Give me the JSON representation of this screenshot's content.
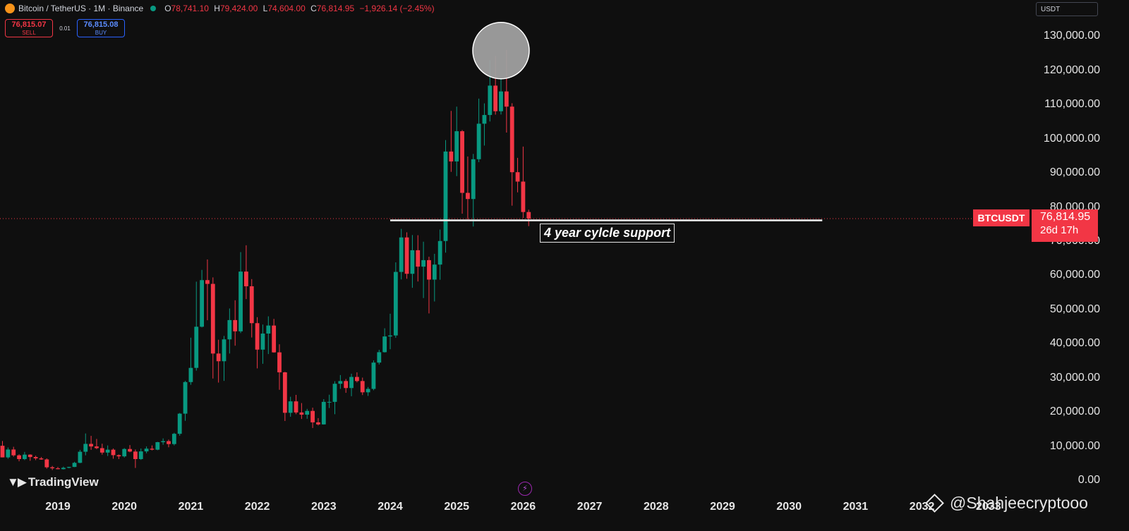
{
  "header": {
    "symbol": "Bitcoin / TetherUS · 1M · Binance",
    "ohlc": {
      "o_label": "O",
      "o_val": "78,741.10",
      "h_label": "H",
      "h_val": "79,424.00",
      "l_label": "L",
      "l_val": "74,604.00",
      "c_label": "C",
      "c_val": "76,814.95",
      "change": "−1,926.14 (−2.45%)"
    },
    "sell_price": "76,815.07",
    "sell_label": "SELL",
    "spread": "0.01",
    "buy_price": "76,815.08",
    "buy_label": "BUY",
    "currency": "USDT"
  },
  "price_tag": {
    "symbol": "BTCUSDT",
    "price": "76,814.95",
    "countdown": "26d 17h"
  },
  "annotation": "4 year cylcle support",
  "logo": "TradingView",
  "watermark": "@Shahjeecryptooo",
  "colors": {
    "up": "#089981",
    "down": "#f23645",
    "background": "#0f0f0f"
  },
  "chart_data": {
    "type": "candlestick",
    "series_name": "Bitcoin / TetherUS",
    "interval": "1M",
    "y_ticks": [
      0,
      10000,
      20000,
      30000,
      40000,
      50000,
      60000,
      70000,
      80000,
      90000,
      100000,
      110000,
      120000,
      130000
    ],
    "y_tick_labels": [
      "0.00",
      "10,000.00",
      "20,000.00",
      "30,000.00",
      "40,000.00",
      "50,000.00",
      "60,000.00",
      "70,000.00",
      "80,000.00",
      "90,000.00",
      "100,000.00",
      "110,000.00",
      "120,000.00",
      "130,000.00"
    ],
    "x_tick_labels": [
      "2019",
      "2020",
      "2021",
      "2022",
      "2023",
      "2024",
      "2025",
      "2026",
      "2027",
      "2028",
      "2029",
      "2030",
      "2031",
      "2032",
      "2033"
    ],
    "x_tick_dates": [
      "2019-01",
      "2020-01",
      "2021-01",
      "2022-01",
      "2023-01",
      "2024-01",
      "2025-01",
      "2026-01",
      "2027-01",
      "2028-01",
      "2029-01",
      "2030-01",
      "2031-01",
      "2032-01",
      "2033-01"
    ],
    "grid": false,
    "support_level": 76300,
    "support_from": "2024-01",
    "support_to": "2030-07",
    "highlight": {
      "date": "2025-09",
      "price": 126000
    },
    "candles": [
      {
        "date": "2018-02",
        "o": 10200,
        "h": 11800,
        "l": 6000,
        "c": 10300
      },
      {
        "date": "2018-03",
        "o": 10300,
        "h": 11700,
        "l": 6900,
        "c": 6900
      },
      {
        "date": "2018-04",
        "o": 6900,
        "h": 9800,
        "l": 6500,
        "c": 9200
      },
      {
        "date": "2018-05",
        "o": 9200,
        "h": 10000,
        "l": 7100,
        "c": 7500
      },
      {
        "date": "2018-06",
        "o": 7500,
        "h": 7800,
        "l": 5750,
        "c": 6400
      },
      {
        "date": "2018-07",
        "o": 6400,
        "h": 8500,
        "l": 6100,
        "c": 7700
      },
      {
        "date": "2018-08",
        "o": 7700,
        "h": 7800,
        "l": 5900,
        "c": 7000
      },
      {
        "date": "2018-09",
        "o": 7000,
        "h": 7400,
        "l": 6100,
        "c": 6600
      },
      {
        "date": "2018-10",
        "o": 6600,
        "h": 7000,
        "l": 6200,
        "c": 6300
      },
      {
        "date": "2018-11",
        "o": 6300,
        "h": 6600,
        "l": 3600,
        "c": 4000
      },
      {
        "date": "2018-12",
        "o": 4000,
        "h": 4400,
        "l": 3200,
        "c": 3700
      },
      {
        "date": "2019-01",
        "o": 3700,
        "h": 4100,
        "l": 3400,
        "c": 3450
      },
      {
        "date": "2019-02",
        "o": 3450,
        "h": 4200,
        "l": 3350,
        "c": 3850
      },
      {
        "date": "2019-03",
        "o": 3850,
        "h": 4150,
        "l": 3700,
        "c": 4100
      },
      {
        "date": "2019-04",
        "o": 4100,
        "h": 5600,
        "l": 4050,
        "c": 5300
      },
      {
        "date": "2019-05",
        "o": 5300,
        "h": 9100,
        "l": 5200,
        "c": 8550
      },
      {
        "date": "2019-06",
        "o": 8550,
        "h": 13900,
        "l": 7500,
        "c": 10850
      },
      {
        "date": "2019-07",
        "o": 10850,
        "h": 13200,
        "l": 9100,
        "c": 10100
      },
      {
        "date": "2019-08",
        "o": 10100,
        "h": 12300,
        "l": 9300,
        "c": 9600
      },
      {
        "date": "2019-09",
        "o": 9600,
        "h": 10900,
        "l": 7700,
        "c": 8300
      },
      {
        "date": "2019-10",
        "o": 8300,
        "h": 10400,
        "l": 7300,
        "c": 9150
      },
      {
        "date": "2019-11",
        "o": 9150,
        "h": 9500,
        "l": 6500,
        "c": 7550
      },
      {
        "date": "2019-12",
        "o": 7550,
        "h": 7750,
        "l": 6400,
        "c": 7200
      },
      {
        "date": "2020-01",
        "o": 7200,
        "h": 9600,
        "l": 6850,
        "c": 9350
      },
      {
        "date": "2020-02",
        "o": 9350,
        "h": 10500,
        "l": 8400,
        "c": 8600
      },
      {
        "date": "2020-03",
        "o": 8600,
        "h": 9200,
        "l": 3800,
        "c": 6400
      },
      {
        "date": "2020-04",
        "o": 6400,
        "h": 9500,
        "l": 6150,
        "c": 8650
      },
      {
        "date": "2020-05",
        "o": 8650,
        "h": 10100,
        "l": 8100,
        "c": 9450
      },
      {
        "date": "2020-06",
        "o": 9450,
        "h": 10400,
        "l": 8950,
        "c": 9150
      },
      {
        "date": "2020-07",
        "o": 9150,
        "h": 11450,
        "l": 9000,
        "c": 11350
      },
      {
        "date": "2020-08",
        "o": 11350,
        "h": 12450,
        "l": 10600,
        "c": 11650
      },
      {
        "date": "2020-09",
        "o": 11650,
        "h": 12100,
        "l": 9850,
        "c": 10800
      },
      {
        "date": "2020-10",
        "o": 10800,
        "h": 14100,
        "l": 10400,
        "c": 13800
      },
      {
        "date": "2020-11",
        "o": 13800,
        "h": 19900,
        "l": 13250,
        "c": 19700
      },
      {
        "date": "2020-12",
        "o": 19700,
        "h": 29300,
        "l": 17600,
        "c": 28950
      },
      {
        "date": "2021-01",
        "o": 28950,
        "h": 41950,
        "l": 28150,
        "c": 33100
      },
      {
        "date": "2021-02",
        "o": 33100,
        "h": 58350,
        "l": 32300,
        "c": 45150
      },
      {
        "date": "2021-03",
        "o": 45150,
        "h": 61800,
        "l": 44950,
        "c": 58800
      },
      {
        "date": "2021-04",
        "o": 58800,
        "h": 64850,
        "l": 47050,
        "c": 57700
      },
      {
        "date": "2021-05",
        "o": 57700,
        "h": 59600,
        "l": 30000,
        "c": 37300
      },
      {
        "date": "2021-06",
        "o": 37300,
        "h": 41350,
        "l": 28800,
        "c": 35050
      },
      {
        "date": "2021-07",
        "o": 35050,
        "h": 42450,
        "l": 29300,
        "c": 41450
      },
      {
        "date": "2021-08",
        "o": 41450,
        "h": 50500,
        "l": 37300,
        "c": 47100
      },
      {
        "date": "2021-09",
        "o": 47100,
        "h": 52900,
        "l": 39600,
        "c": 43800
      },
      {
        "date": "2021-10",
        "o": 43800,
        "h": 67000,
        "l": 43300,
        "c": 61300
      },
      {
        "date": "2021-11",
        "o": 61300,
        "h": 69000,
        "l": 53250,
        "c": 57000
      },
      {
        "date": "2021-12",
        "o": 57000,
        "h": 59100,
        "l": 42000,
        "c": 46200
      },
      {
        "date": "2022-01",
        "o": 46200,
        "h": 47950,
        "l": 32950,
        "c": 38450
      },
      {
        "date": "2022-02",
        "o": 38450,
        "h": 45800,
        "l": 34300,
        "c": 43150
      },
      {
        "date": "2022-03",
        "o": 43150,
        "h": 48200,
        "l": 37150,
        "c": 45500
      },
      {
        "date": "2022-04",
        "o": 45500,
        "h": 47450,
        "l": 37550,
        "c": 37650
      },
      {
        "date": "2022-05",
        "o": 37650,
        "h": 40000,
        "l": 26700,
        "c": 31800
      },
      {
        "date": "2022-06",
        "o": 31800,
        "h": 31950,
        "l": 17550,
        "c": 19950
      },
      {
        "date": "2022-07",
        "o": 19950,
        "h": 24650,
        "l": 18800,
        "c": 23300
      },
      {
        "date": "2022-08",
        "o": 23300,
        "h": 25200,
        "l": 19550,
        "c": 20050
      },
      {
        "date": "2022-09",
        "o": 20050,
        "h": 22800,
        "l": 18150,
        "c": 19400
      },
      {
        "date": "2022-10",
        "o": 19400,
        "h": 21100,
        "l": 18200,
        "c": 20500
      },
      {
        "date": "2022-11",
        "o": 20500,
        "h": 21450,
        "l": 15500,
        "c": 17150
      },
      {
        "date": "2022-12",
        "o": 17150,
        "h": 18400,
        "l": 16250,
        "c": 16550
      },
      {
        "date": "2023-01",
        "o": 16550,
        "h": 23950,
        "l": 16500,
        "c": 23150
      },
      {
        "date": "2023-02",
        "o": 23150,
        "h": 25250,
        "l": 21350,
        "c": 23150
      },
      {
        "date": "2023-03",
        "o": 23150,
        "h": 29200,
        "l": 19550,
        "c": 28450
      },
      {
        "date": "2023-04",
        "o": 28450,
        "h": 31000,
        "l": 26950,
        "c": 29250
      },
      {
        "date": "2023-05",
        "o": 29250,
        "h": 29850,
        "l": 25800,
        "c": 27200
      },
      {
        "date": "2023-06",
        "o": 27200,
        "h": 31400,
        "l": 24800,
        "c": 30450
      },
      {
        "date": "2023-07",
        "o": 30450,
        "h": 31800,
        "l": 28850,
        "c": 29250
      },
      {
        "date": "2023-08",
        "o": 29250,
        "h": 30250,
        "l": 25150,
        "c": 25950
      },
      {
        "date": "2023-09",
        "o": 25950,
        "h": 27500,
        "l": 24900,
        "c": 26950
      },
      {
        "date": "2023-10",
        "o": 26950,
        "h": 35300,
        "l": 26550,
        "c": 34650
      },
      {
        "date": "2023-11",
        "o": 34650,
        "h": 38400,
        "l": 34100,
        "c": 37700
      },
      {
        "date": "2023-12",
        "o": 37700,
        "h": 44700,
        "l": 37600,
        "c": 42300
      },
      {
        "date": "2024-01",
        "o": 42300,
        "h": 48950,
        "l": 38550,
        "c": 42600
      },
      {
        "date": "2024-02",
        "o": 42600,
        "h": 64000,
        "l": 41900,
        "c": 61200
      },
      {
        "date": "2024-03",
        "o": 61200,
        "h": 73800,
        "l": 59000,
        "c": 71300
      },
      {
        "date": "2024-04",
        "o": 71300,
        "h": 72800,
        "l": 59200,
        "c": 60650
      },
      {
        "date": "2024-05",
        "o": 60650,
        "h": 72000,
        "l": 56550,
        "c": 67550
      },
      {
        "date": "2024-06",
        "o": 67550,
        "h": 71950,
        "l": 58400,
        "c": 62750
      },
      {
        "date": "2024-07",
        "o": 62750,
        "h": 70050,
        "l": 53550,
        "c": 64650
      },
      {
        "date": "2024-08",
        "o": 64650,
        "h": 65650,
        "l": 49050,
        "c": 58950
      },
      {
        "date": "2024-09",
        "o": 58950,
        "h": 66500,
        "l": 52550,
        "c": 63350
      },
      {
        "date": "2024-10",
        "o": 63350,
        "h": 73600,
        "l": 58900,
        "c": 70250
      },
      {
        "date": "2024-11",
        "o": 70250,
        "h": 99800,
        "l": 66850,
        "c": 96450
      },
      {
        "date": "2024-12",
        "o": 96450,
        "h": 108350,
        "l": 90500,
        "c": 93550
      },
      {
        "date": "2025-01",
        "o": 93550,
        "h": 109600,
        "l": 89250,
        "c": 102400
      },
      {
        "date": "2025-02",
        "o": 102400,
        "h": 102750,
        "l": 78250,
        "c": 84350
      },
      {
        "date": "2025-03",
        "o": 84350,
        "h": 95000,
        "l": 76600,
        "c": 82550
      },
      {
        "date": "2025-04",
        "o": 82550,
        "h": 95750,
        "l": 74500,
        "c": 94200
      },
      {
        "date": "2025-05",
        "o": 94200,
        "h": 111950,
        "l": 93350,
        "c": 104600
      },
      {
        "date": "2025-06",
        "o": 104600,
        "h": 110550,
        "l": 98200,
        "c": 107150
      },
      {
        "date": "2025-07",
        "o": 107150,
        "h": 123200,
        "l": 105250,
        "c": 115750
      },
      {
        "date": "2025-08",
        "o": 115750,
        "h": 124450,
        "l": 107250,
        "c": 108250
      },
      {
        "date": "2025-09",
        "o": 108250,
        "h": 117900,
        "l": 107300,
        "c": 114050
      },
      {
        "date": "2025-10",
        "o": 114050,
        "h": 126200,
        "l": 102000,
        "c": 109600
      },
      {
        "date": "2025-11",
        "o": 109600,
        "h": 110600,
        "l": 80600,
        "c": 90400
      },
      {
        "date": "2025-12",
        "o": 90400,
        "h": 94600,
        "l": 84500,
        "c": 87650
      },
      {
        "date": "2026-01",
        "o": 87650,
        "h": 97900,
        "l": 77000,
        "c": 78741
      },
      {
        "date": "2026-02",
        "o": 78741,
        "h": 79424,
        "l": 74604,
        "c": 76815
      }
    ]
  }
}
